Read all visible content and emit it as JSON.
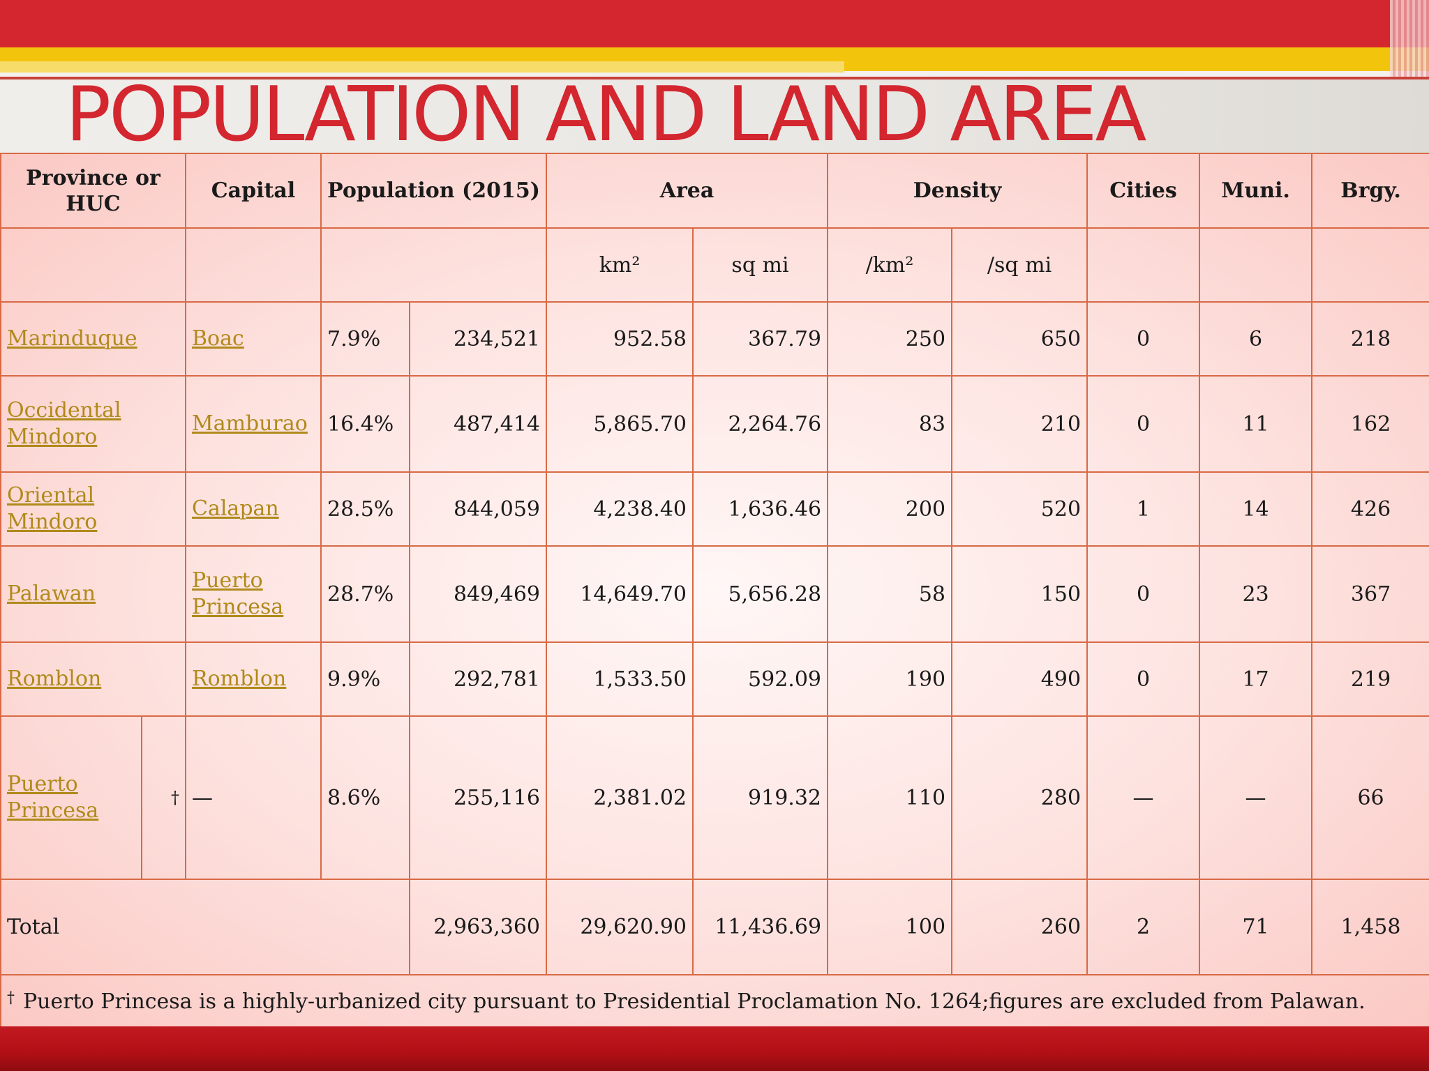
{
  "title": "POPULATION AND LAND AREA",
  "table": {
    "headers": {
      "province": "Province or HUC",
      "capital": "Capital",
      "population": "Population (2015)",
      "area": "Area",
      "density": "Density",
      "cities": "Cities",
      "muni": "Muni.",
      "brgy": "Brgy."
    },
    "units": {
      "area_km": "km²",
      "area_mi": "sq mi",
      "density_km": "/km²",
      "density_mi": "/sq mi"
    },
    "rows": [
      {
        "province": "Marinduque",
        "capital": "Boac",
        "pct": "7.9%",
        "population": "234,521",
        "area_km": "952.58",
        "area_mi": "367.79",
        "density_km": "250",
        "density_mi": "650",
        "cities": "0",
        "muni": "6",
        "brgy": "218"
      },
      {
        "province": "Occidental Mindoro",
        "capital": "Mamburao",
        "pct": "16.4%",
        "population": "487,414",
        "area_km": "5,865.70",
        "area_mi": "2,264.76",
        "density_km": "83",
        "density_mi": "210",
        "cities": "0",
        "muni": "11",
        "brgy": "162"
      },
      {
        "province": "Oriental Mindoro",
        "capital": "Calapan",
        "pct": "28.5%",
        "population": "844,059",
        "area_km": "4,238.40",
        "area_mi": "1,636.46",
        "density_km": "200",
        "density_mi": "520",
        "cities": "1",
        "muni": "14",
        "brgy": "426"
      },
      {
        "province": "Palawan",
        "capital": "Puerto Princesa",
        "pct": "28.7%",
        "population": "849,469",
        "area_km": "14,649.70",
        "area_mi": "5,656.28",
        "density_km": "58",
        "density_mi": "150",
        "cities": "0",
        "muni": "23",
        "brgy": "367"
      },
      {
        "province": "Romblon",
        "capital": "Romblon",
        "pct": "9.9%",
        "population": "292,781",
        "area_km": "1,533.50",
        "area_mi": "592.09",
        "density_km": "190",
        "density_mi": "490",
        "cities": "0",
        "muni": "17",
        "brgy": "219"
      },
      {
        "province": "Puerto Princesa",
        "dagger": "†",
        "capital": "—",
        "pct": "8.6%",
        "population": "255,116",
        "area_km": "2,381.02",
        "area_mi": "919.32",
        "density_km": "110",
        "density_mi": "280",
        "cities": "—",
        "muni": "—",
        "brgy": "66"
      }
    ],
    "total": {
      "label": "Total",
      "population": "2,963,360",
      "area_km": "29,620.90",
      "area_mi": "11,436.69",
      "density_km": "100",
      "density_mi": "260",
      "cities": "2",
      "muni": "71",
      "brgy": "1,458"
    },
    "footnote": {
      "mark": "†",
      "text": "Puerto Princesa is a highly-urbanized city pursuant to Presidential Proclamation No. 1264;figures are excluded from Palawan."
    }
  },
  "colors": {
    "accent_red": "#d3262f",
    "accent_yellow": "#f2c40c",
    "link": "#b08a1a",
    "border": "#d86a45"
  }
}
